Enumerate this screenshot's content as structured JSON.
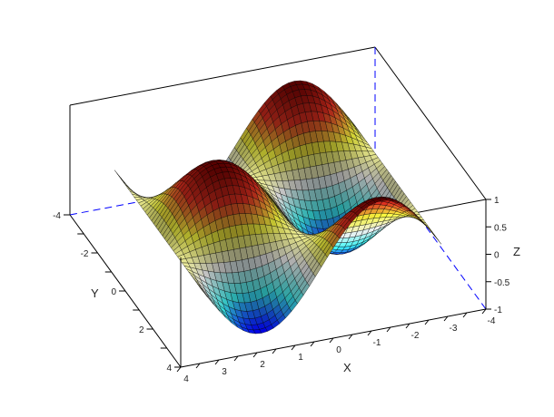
{
  "chart_data": {
    "type": "surface",
    "function": "z = sin(x) * cos(y)",
    "x_domain": [
      -3.14159,
      3.14159
    ],
    "y_domain": [
      -3.14159,
      3.14159
    ],
    "mesh_cells": 40,
    "xlim": [
      -4,
      4
    ],
    "ylim": [
      -4,
      4
    ],
    "zlim": [
      -1,
      1
    ],
    "xlabel": "X",
    "ylabel": "Y",
    "zlabel": "Z",
    "x_ticks": [
      "4",
      "3",
      "2",
      "1",
      "0",
      "-1",
      "-2",
      "-3",
      "-4"
    ],
    "x_tick_values": [
      4,
      3,
      2,
      1,
      0,
      -1,
      -2,
      -3,
      -4
    ],
    "y_ticks": [
      "-4",
      "-2",
      "0",
      "2",
      "4"
    ],
    "y_tick_values": [
      -4,
      -2,
      0,
      2,
      4
    ],
    "z_ticks": [
      "1",
      "0.5",
      "0",
      "-0.5",
      "-1"
    ],
    "z_tick_values": [
      1,
      0.5,
      0,
      -0.5,
      -1
    ],
    "colormap": [
      "#0000ff",
      "#40ffff",
      "#ffffff",
      "#ffff40",
      "#e03020",
      "#600000"
    ],
    "mesh_color": "#000000",
    "hidden_axis_color": "#0000ff"
  }
}
